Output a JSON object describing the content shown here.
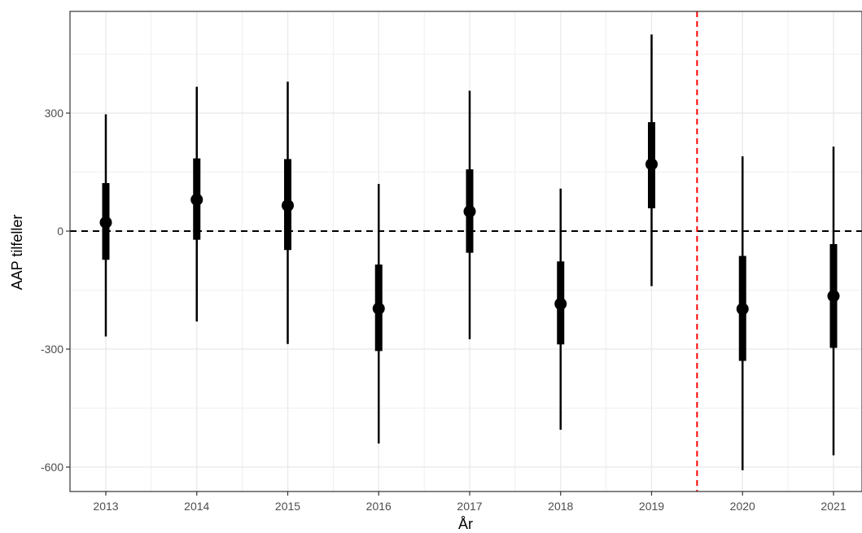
{
  "chart_data": {
    "type": "errorbar",
    "title": "",
    "xlabel": "År",
    "ylabel": "AAP tilfeller",
    "categories": [
      "2013",
      "2014",
      "2015",
      "2016",
      "2017",
      "2018",
      "2019",
      "2020",
      "2021"
    ],
    "estimates": [
      22,
      80,
      65,
      -197,
      50,
      -185,
      170,
      -198,
      -165
    ],
    "inner_interval": {
      "lower": [
        -73,
        -22,
        -48,
        -305,
        -55,
        -288,
        58,
        -330,
        -297
      ],
      "upper": [
        122,
        185,
        183,
        -85,
        157,
        -77,
        277,
        -63,
        -33
      ]
    },
    "outer_interval": {
      "lower": [
        -268,
        -230,
        -287,
        -540,
        -275,
        -505,
        -140,
        -608,
        -570
      ],
      "upper": [
        297,
        367,
        380,
        120,
        357,
        108,
        500,
        190,
        215
      ]
    },
    "yticks": [
      300,
      0,
      -300,
      -600
    ],
    "ylim": [
      -660,
      560
    ],
    "reference_lines": [
      {
        "orientation": "horizontal",
        "value": 0,
        "style": "dashed",
        "color": "#000000"
      },
      {
        "orientation": "vertical",
        "between": [
          "2019",
          "2020"
        ],
        "style": "dashed",
        "color": "#ff0000"
      }
    ],
    "grid": true,
    "legend": "none",
    "colors": {
      "marks": "#000000",
      "grid": "#ebebeb",
      "panel_border": "#333333"
    }
  }
}
